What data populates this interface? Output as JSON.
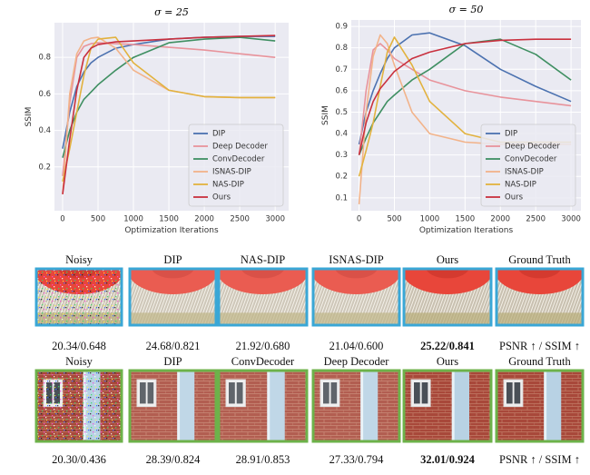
{
  "chart_data": [
    {
      "type": "line",
      "title": "σ = 25",
      "x_label": "Optimization Iterations",
      "y_label": "SSIM",
      "x": [
        0,
        100,
        200,
        300,
        400,
        500,
        750,
        1000,
        1500,
        2000,
        2500,
        3000
      ],
      "series": [
        {
          "name": "DIP",
          "color": "#4c72b0",
          "values": [
            0.3,
            0.5,
            0.64,
            0.72,
            0.77,
            0.8,
            0.85,
            0.87,
            0.9,
            0.91,
            0.915,
            0.915
          ]
        },
        {
          "name": "Deep Decoder",
          "color": "#e8939b",
          "values": [
            0.15,
            0.55,
            0.8,
            0.86,
            0.875,
            0.88,
            0.875,
            0.87,
            0.855,
            0.84,
            0.82,
            0.8
          ]
        },
        {
          "name": "ConvDecoder",
          "color": "#3f8f62",
          "values": [
            0.25,
            0.4,
            0.5,
            0.57,
            0.61,
            0.65,
            0.73,
            0.8,
            0.88,
            0.9,
            0.91,
            0.89
          ]
        },
        {
          "name": "ISNAS-DIP",
          "color": "#f2b38a",
          "values": [
            0.05,
            0.6,
            0.82,
            0.89,
            0.905,
            0.91,
            0.85,
            0.73,
            0.62,
            0.585,
            0.58,
            0.58
          ]
        },
        {
          "name": "NAS-DIP",
          "color": "#e2b23e",
          "values": [
            0.12,
            0.3,
            0.5,
            0.7,
            0.85,
            0.9,
            0.91,
            0.77,
            0.62,
            0.585,
            0.58,
            0.58
          ]
        },
        {
          "name": "Ours",
          "color": "#c9303e",
          "values": [
            0.05,
            0.35,
            0.62,
            0.8,
            0.85,
            0.87,
            0.885,
            0.89,
            0.9,
            0.91,
            0.915,
            0.92
          ]
        }
      ],
      "xlim": [
        -115,
        3190
      ],
      "ylim": [
        -0.04,
        0.99
      ],
      "xticks": [
        0,
        500,
        1000,
        1500,
        2000,
        2500,
        3000
      ],
      "yticks": [
        0.2,
        0.4,
        0.6,
        0.8
      ],
      "grid": true,
      "legend": "lower right"
    },
    {
      "type": "line",
      "title": "σ = 50",
      "x_label": "Optimization Iterations",
      "y_label": "SSIM",
      "x": [
        0,
        100,
        200,
        300,
        400,
        500,
        750,
        1000,
        1500,
        2000,
        2500,
        3000
      ],
      "series": [
        {
          "name": "DIP",
          "color": "#4c72b0",
          "values": [
            0.35,
            0.5,
            0.6,
            0.68,
            0.75,
            0.8,
            0.86,
            0.87,
            0.81,
            0.7,
            0.62,
            0.55
          ]
        },
        {
          "name": "Deep Decoder",
          "color": "#e8939b",
          "values": [
            0.3,
            0.6,
            0.79,
            0.82,
            0.79,
            0.75,
            0.7,
            0.65,
            0.6,
            0.57,
            0.55,
            0.53
          ]
        },
        {
          "name": "ConvDecoder",
          "color": "#3f8f62",
          "values": [
            0.3,
            0.38,
            0.45,
            0.5,
            0.55,
            0.58,
            0.65,
            0.7,
            0.82,
            0.84,
            0.77,
            0.65
          ]
        },
        {
          "name": "ISNAS-DIP",
          "color": "#f2b38a",
          "values": [
            0.07,
            0.5,
            0.76,
            0.86,
            0.82,
            0.72,
            0.5,
            0.4,
            0.36,
            0.35,
            0.35,
            0.35
          ]
        },
        {
          "name": "NAS-DIP",
          "color": "#e2b23e",
          "values": [
            0.2,
            0.32,
            0.45,
            0.62,
            0.78,
            0.85,
            0.72,
            0.55,
            0.4,
            0.36,
            0.36,
            0.36
          ]
        },
        {
          "name": "Ours",
          "color": "#c9303e",
          "values": [
            0.3,
            0.45,
            0.55,
            0.61,
            0.65,
            0.69,
            0.75,
            0.78,
            0.82,
            0.835,
            0.84,
            0.84
          ]
        }
      ],
      "xlim": [
        -110,
        3140
      ],
      "ylim": [
        0.04,
        0.93
      ],
      "xticks": [
        0,
        500,
        1000,
        1500,
        2000,
        2500,
        3000
      ],
      "yticks": [
        0.1,
        0.2,
        0.3,
        0.4,
        0.5,
        0.6,
        0.7,
        0.8,
        0.9
      ],
      "grid": true,
      "legend": "lower right"
    }
  ],
  "rows": [
    {
      "labels": [
        "Noisy",
        "DIP",
        "NAS-DIP",
        "ISNAS-DIP",
        "Ours",
        "Ground Truth"
      ],
      "metrics": [
        "20.34/0.648",
        "24.68/0.821",
        "21.92/0.680",
        "21.04/0.600",
        "25.22/0.841",
        "PSNR ↑ / SSIM ↑"
      ],
      "highlight": 4,
      "border": "#3aa7d6"
    },
    {
      "labels": [
        "Noisy",
        "DIP",
        "ConvDecoder",
        "Deep Decoder",
        "Ours",
        "Ground Truth"
      ],
      "metrics": [
        "20.30/0.436",
        "28.39/0.824",
        "28.91/0.853",
        "27.33/0.794",
        "32.01/0.924",
        "PSNR ↑ / SSIM ↑"
      ],
      "highlight": 4,
      "border": "#6db24a"
    }
  ]
}
